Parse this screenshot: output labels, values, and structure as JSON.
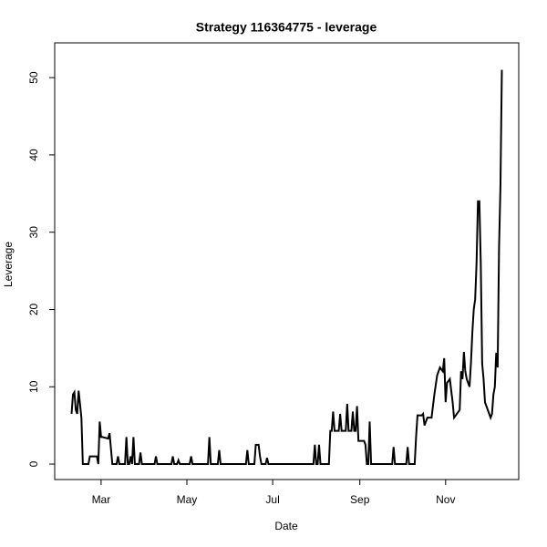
{
  "chart_data": {
    "type": "line",
    "title": "Strategy 116364775 - leverage",
    "x_label": "Date",
    "y_label": "Leverage",
    "xlim": [
      27,
      357
    ],
    "ylim": [
      -2,
      54.5
    ],
    "xticks": [
      {
        "value": 60,
        "label": "Mar"
      },
      {
        "value": 121,
        "label": "May"
      },
      {
        "value": 182,
        "label": "Jul"
      },
      {
        "value": 244,
        "label": "Sep"
      },
      {
        "value": 305,
        "label": "Nov"
      }
    ],
    "yticks": [
      0,
      10,
      20,
      30,
      40,
      50
    ],
    "x": [
      39,
      40,
      41,
      42,
      43,
      44,
      46,
      47,
      51,
      52,
      57,
      58,
      59,
      60,
      61,
      65,
      66,
      67,
      68,
      71,
      72,
      73,
      77,
      78,
      79,
      80,
      81,
      82,
      83,
      84,
      87,
      88,
      89,
      98,
      99,
      100,
      110,
      111,
      112,
      114,
      115,
      116,
      123,
      124,
      125,
      136,
      137,
      138,
      143,
      144,
      145,
      163,
      164,
      165,
      169,
      170,
      172,
      173,
      174,
      177,
      178,
      179,
      211,
      212,
      213,
      214,
      215,
      216,
      222,
      223,
      224,
      225,
      226,
      229,
      230,
      231,
      234,
      235,
      236,
      238,
      239,
      240,
      241,
      242,
      243,
      247,
      248,
      249,
      250,
      251,
      252,
      267,
      268,
      269,
      277,
      278,
      279,
      283,
      284,
      285,
      288,
      289,
      290,
      292,
      295,
      297,
      299,
      301,
      303,
      304,
      305,
      306,
      308,
      310,
      311,
      313,
      315,
      316,
      317,
      318,
      319,
      320,
      322,
      323,
      324,
      325,
      326,
      327,
      328,
      329,
      330,
      331,
      332,
      333,
      335,
      337,
      338,
      339,
      340,
      341,
      342,
      343,
      344,
      345
    ],
    "series": [
      {
        "name": "leverage",
        "color": "#000000",
        "values": [
          6.5,
          9,
          9.3,
          7,
          6.5,
          9.5,
          6,
          0,
          0,
          1,
          1,
          0,
          5.5,
          3.5,
          3.5,
          3.3,
          4,
          2,
          0,
          0,
          1,
          0,
          0,
          3.5,
          0,
          0,
          1,
          0,
          3.5,
          0,
          0,
          1.5,
          0,
          0,
          1,
          0,
          0,
          1,
          0,
          0,
          0.5,
          0,
          0,
          1,
          0,
          0,
          3.5,
          0,
          0,
          1.8,
          0,
          0,
          1.8,
          0,
          0,
          2.5,
          2.5,
          1,
          0,
          0,
          0.8,
          0,
          0,
          2.5,
          0,
          0,
          2.5,
          0,
          0,
          4.3,
          4.3,
          6.8,
          4.3,
          4.3,
          6.5,
          4.3,
          4.3,
          7.8,
          4.3,
          4.3,
          6.8,
          4.3,
          4.3,
          7.5,
          3,
          3,
          2.5,
          0,
          0,
          5.5,
          0,
          0,
          2.2,
          0,
          0,
          2.2,
          0,
          0,
          3.5,
          6.3,
          6.3,
          6.5,
          5,
          6,
          6,
          9,
          11.5,
          12.5,
          12,
          13.7,
          8,
          10.5,
          11,
          8,
          6,
          6.5,
          7,
          12,
          11,
          14.5,
          12,
          11,
          10,
          13,
          17,
          20,
          21.3,
          26,
          34,
          34,
          26,
          13,
          11,
          8,
          7,
          6,
          6.5,
          9,
          10,
          14.4,
          12.5,
          28,
          36,
          51
        ]
      }
    ]
  }
}
